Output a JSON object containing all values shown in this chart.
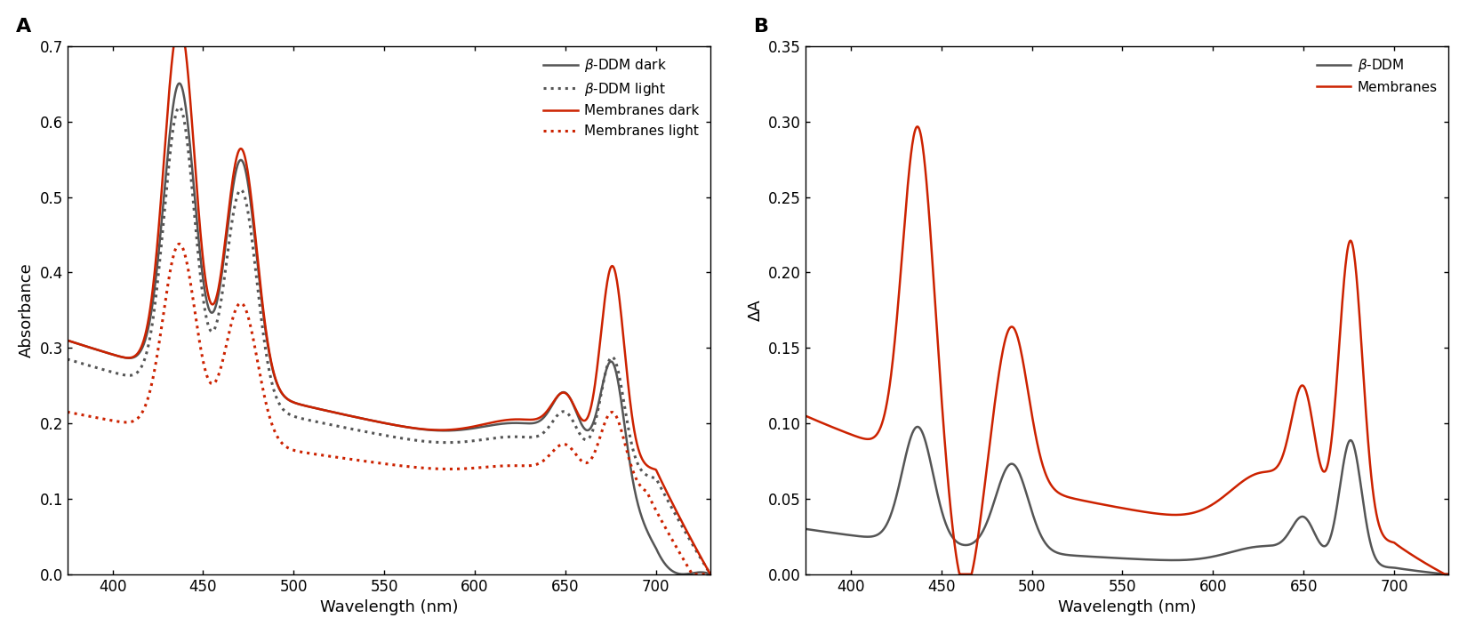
{
  "panel_A": {
    "title": "A",
    "xlabel": "Wavelength (nm)",
    "ylabel": "Absorbance",
    "xlim": [
      375,
      730
    ],
    "ylim": [
      0,
      0.7
    ],
    "yticks": [
      0,
      0.1,
      0.2,
      0.3,
      0.4,
      0.5,
      0.6,
      0.7
    ],
    "xticks": [
      400,
      450,
      500,
      550,
      600,
      650,
      700
    ]
  },
  "panel_B": {
    "title": "B",
    "xlabel": "Wavelength (nm)",
    "ylabel": "ΔA",
    "xlim": [
      375,
      730
    ],
    "ylim": [
      0,
      0.35
    ],
    "yticks": [
      0,
      0.05,
      0.1,
      0.15,
      0.2,
      0.25,
      0.3,
      0.35
    ],
    "xticks": [
      400,
      450,
      500,
      550,
      600,
      650,
      700
    ]
  },
  "dark_gray": "#555555",
  "red": "#cc2200",
  "fig_background": "#ffffff",
  "legend_A": [
    "β-DDM dark",
    "β-DDM light",
    "Membranes dark",
    "Membranes light"
  ],
  "legend_B": [
    "β-DDM",
    "Membranes"
  ]
}
